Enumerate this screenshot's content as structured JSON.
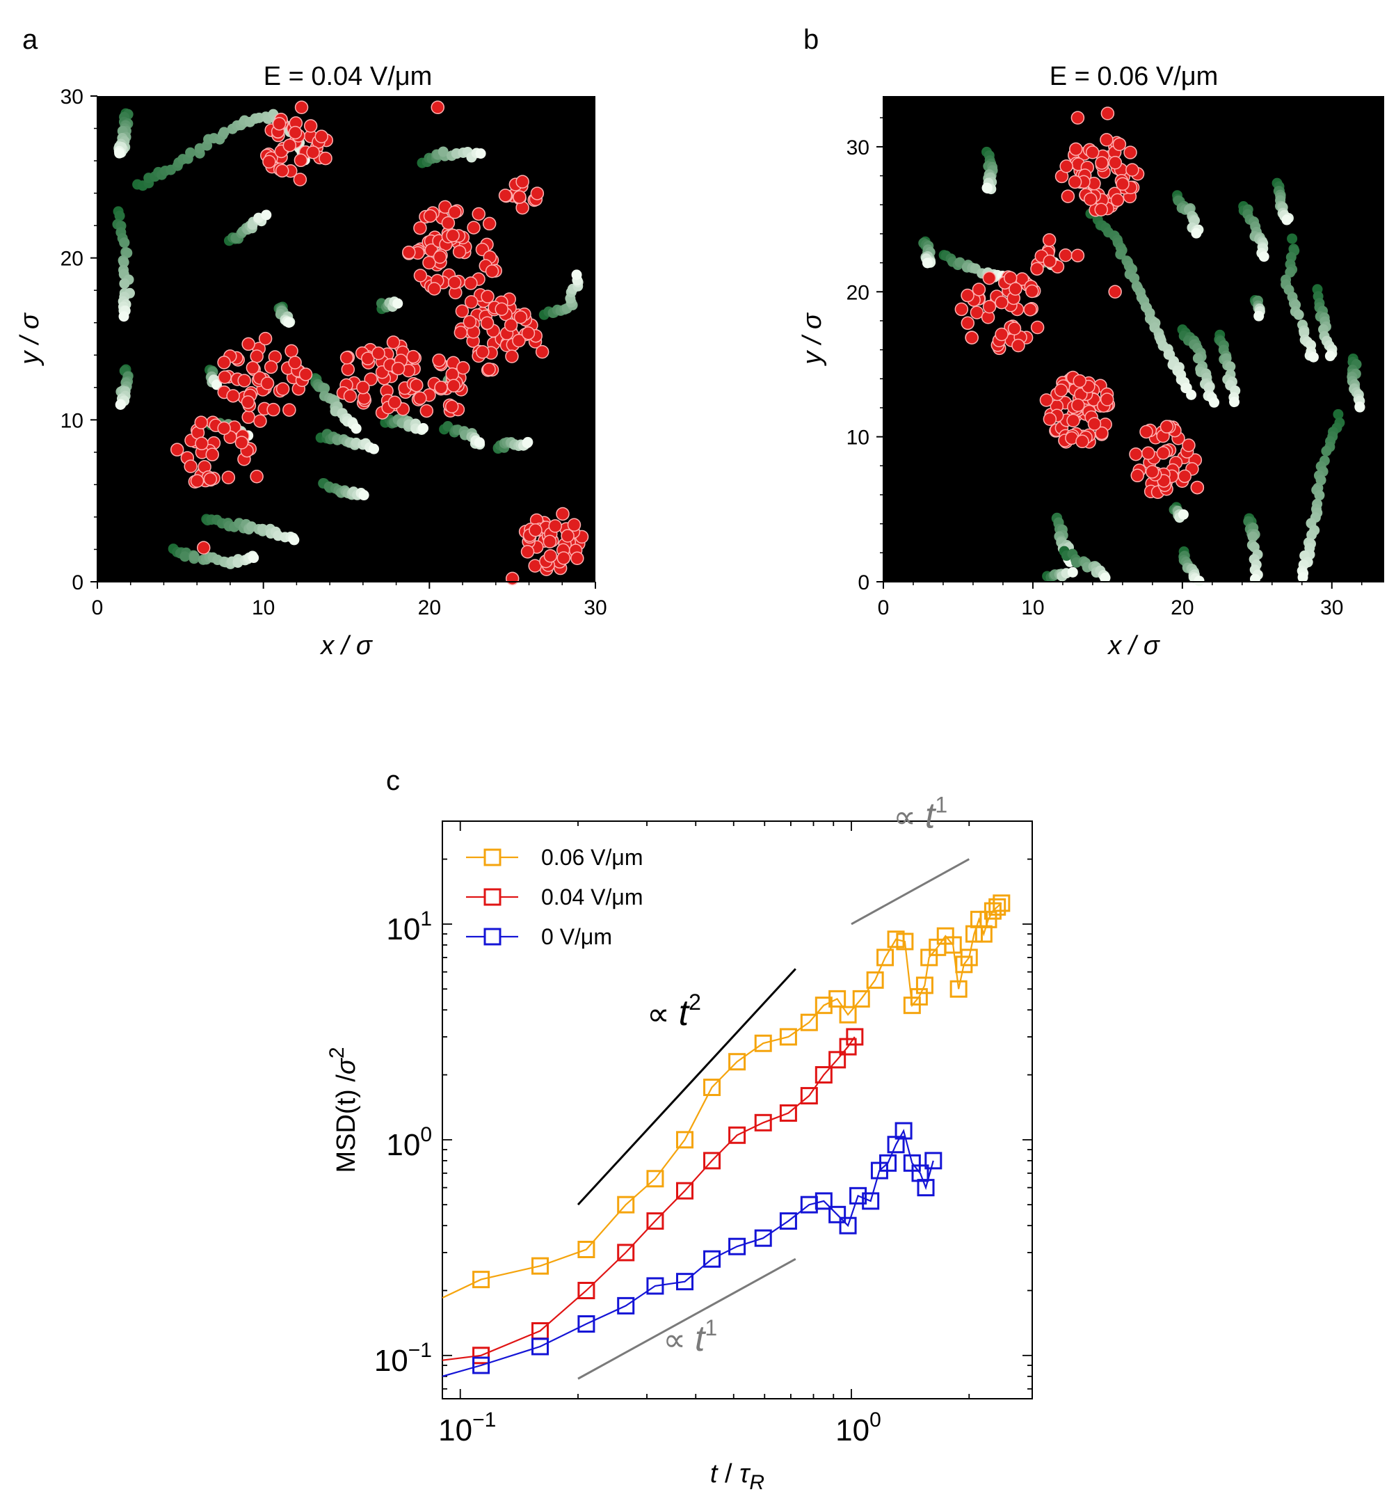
{
  "panels": {
    "a": {
      "letter": "a",
      "title": "E = 0.04 V/μm"
    },
    "b": {
      "letter": "b",
      "title": "E = 0.06 V/μm"
    },
    "c": {
      "letter": "c"
    }
  },
  "colors": {
    "background": "#000000",
    "passive_particle": "#e01e1e",
    "passive_edge": "#ffb0b0",
    "trajectory_dark": "#1d6b35",
    "trajectory_light": "#f2fbf2",
    "series_006": "#f5a40d",
    "series_004": "#e01414",
    "series_0": "#1414d6",
    "guide_black": "#000000",
    "guide_gray": "#7a7a7a"
  },
  "chart_data": [
    {
      "type": "scatter",
      "panel": "a",
      "title": "E = 0.04 V/μm",
      "xlabel": "x / σ",
      "ylabel": "y / σ",
      "xlim": [
        0,
        30
      ],
      "ylim": [
        0,
        30
      ],
      "xticks": [
        "0",
        "10",
        "20",
        "30"
      ],
      "yticks": [
        "0",
        "10",
        "20",
        "30"
      ],
      "clusters": [
        {
          "cx": 12.0,
          "cy": 26.8,
          "r": 2.0,
          "n": 35
        },
        {
          "cx": 21.5,
          "cy": 20.5,
          "r": 2.8,
          "n": 60
        },
        {
          "cx": 24.0,
          "cy": 15.5,
          "r": 2.5,
          "n": 55
        },
        {
          "cx": 17.0,
          "cy": 12.5,
          "r": 2.5,
          "n": 45
        },
        {
          "cx": 10.0,
          "cy": 12.5,
          "r": 2.6,
          "n": 45
        },
        {
          "cx": 7.0,
          "cy": 8.0,
          "r": 2.2,
          "n": 35
        },
        {
          "cx": 27.5,
          "cy": 2.5,
          "r": 1.9,
          "n": 45
        },
        {
          "cx": 20.8,
          "cy": 12.0,
          "r": 1.8,
          "n": 25
        },
        {
          "cx": 25.5,
          "cy": 24.0,
          "r": 1.0,
          "n": 12
        }
      ],
      "trajectories": [
        [
          [
            1.8,
            29.0
          ],
          [
            1.7,
            28.0
          ],
          [
            1.5,
            27.0
          ],
          [
            1.3,
            26.5
          ]
        ],
        [
          [
            2.5,
            24.5
          ],
          [
            4.5,
            25.5
          ],
          [
            6.5,
            27.0
          ],
          [
            8.5,
            28.3
          ],
          [
            10.5,
            28.8
          ],
          [
            12.0,
            27.5
          ],
          [
            12.5,
            26.0
          ]
        ],
        [
          [
            1.2,
            22.8
          ],
          [
            1.6,
            20.5
          ],
          [
            1.8,
            18.0
          ],
          [
            1.6,
            16.5
          ]
        ],
        [
          [
            8.0,
            21.0
          ],
          [
            9.0,
            21.8
          ],
          [
            10.0,
            22.5
          ]
        ],
        [
          [
            11.0,
            17.0
          ],
          [
            11.2,
            16.5
          ],
          [
            11.5,
            16.0
          ]
        ],
        [
          [
            17.0,
            17.0
          ],
          [
            18.0,
            17.2
          ]
        ],
        [
          [
            1.8,
            13.0
          ],
          [
            1.6,
            12.0
          ],
          [
            1.5,
            11.0
          ]
        ],
        [
          [
            6.8,
            13.0
          ],
          [
            7.2,
            12.2
          ]
        ],
        [
          [
            13.0,
            12.5
          ],
          [
            13.5,
            12.0
          ],
          [
            14.5,
            10.5
          ],
          [
            15.5,
            9.5
          ]
        ],
        [
          [
            7.0,
            9.8
          ],
          [
            8.0,
            9.5
          ],
          [
            9.0,
            9.2
          ]
        ],
        [
          [
            13.5,
            9.0
          ],
          [
            15.0,
            8.8
          ],
          [
            16.5,
            8.3
          ]
        ],
        [
          [
            13.5,
            6.0
          ],
          [
            15.0,
            5.5
          ],
          [
            16.0,
            5.3
          ]
        ],
        [
          [
            17.5,
            10.0
          ],
          [
            18.5,
            9.8
          ],
          [
            19.5,
            9.5
          ]
        ],
        [
          [
            21.0,
            9.5
          ],
          [
            22.5,
            9.0
          ],
          [
            23.0,
            8.5
          ]
        ],
        [
          [
            21.0,
            12.5
          ],
          [
            21.5,
            12.0
          ]
        ],
        [
          [
            24.0,
            8.3
          ],
          [
            25.0,
            8.5
          ],
          [
            26.0,
            8.5
          ]
        ],
        [
          [
            19.5,
            26.0
          ],
          [
            21.0,
            26.5
          ],
          [
            23.0,
            26.3
          ]
        ],
        [
          [
            6.5,
            3.8
          ],
          [
            8.5,
            3.5
          ],
          [
            10.0,
            3.2
          ],
          [
            12.0,
            2.5
          ]
        ],
        [
          [
            4.5,
            2.0
          ],
          [
            6.0,
            1.5
          ],
          [
            8.0,
            1.2
          ],
          [
            9.5,
            1.5
          ]
        ],
        [
          [
            27.0,
            16.5
          ],
          [
            28.5,
            17.0
          ],
          [
            29.0,
            19.0
          ]
        ]
      ],
      "isolated": [
        [
          12.3,
          29.3
        ],
        [
          20.5,
          29.3
        ],
        [
          13.5,
          27.5
        ],
        [
          26.8,
          14.2
        ],
        [
          16.0,
          12.0
        ],
        [
          20.7,
          12.0
        ],
        [
          6.4,
          2.1
        ],
        [
          25.0,
          0.2
        ],
        [
          9.6,
          6.5
        ]
      ]
    },
    {
      "type": "scatter",
      "panel": "b",
      "title": "E = 0.06 V/μm",
      "xlabel": "x / σ",
      "ylabel": "y / σ",
      "xlim": [
        0,
        33.5
      ],
      "ylim": [
        0,
        33.5
      ],
      "xticks": [
        "0",
        "10",
        "20",
        "30"
      ],
      "yticks": [
        "0",
        "10",
        "20",
        "30"
      ],
      "clusters": [
        {
          "cx": 14.5,
          "cy": 28.0,
          "r": 2.6,
          "n": 60
        },
        {
          "cx": 8.0,
          "cy": 18.5,
          "r": 2.8,
          "n": 45
        },
        {
          "cx": 13.0,
          "cy": 11.8,
          "r": 2.4,
          "n": 70
        },
        {
          "cx": 18.5,
          "cy": 8.5,
          "r": 2.4,
          "n": 40
        },
        {
          "cx": 11.0,
          "cy": 22.5,
          "r": 1.2,
          "n": 10
        }
      ],
      "trajectories": [
        [
          [
            7.0,
            29.5
          ],
          [
            7.2,
            28.0
          ],
          [
            7.0,
            27.0
          ]
        ],
        [
          [
            2.8,
            23.5
          ],
          [
            3.0,
            22.5
          ],
          [
            3.0,
            22.0
          ]
        ],
        [
          [
            4.0,
            22.5
          ],
          [
            6.0,
            21.5
          ],
          [
            8.0,
            21.0
          ]
        ],
        [
          [
            10.5,
            22.2
          ],
          [
            11.5,
            22.0
          ]
        ],
        [
          [
            14.0,
            25.5
          ],
          [
            15.5,
            23.5
          ],
          [
            16.5,
            21.5
          ],
          [
            17.5,
            19.0
          ],
          [
            18.5,
            17.0
          ],
          [
            19.5,
            15.0
          ],
          [
            20.5,
            13.0
          ]
        ],
        [
          [
            19.5,
            26.5
          ],
          [
            20.5,
            25.5
          ],
          [
            21.0,
            24.0
          ]
        ],
        [
          [
            24.0,
            26.0
          ],
          [
            25.0,
            24.0
          ],
          [
            25.5,
            22.5
          ]
        ],
        [
          [
            26.5,
            27.5
          ],
          [
            26.7,
            26.0
          ],
          [
            27.0,
            25.0
          ]
        ],
        [
          [
            27.5,
            23.5
          ],
          [
            27.0,
            20.5
          ],
          [
            28.0,
            17.5
          ],
          [
            28.8,
            15.5
          ]
        ],
        [
          [
            20.0,
            17.5
          ],
          [
            21.0,
            16.0
          ],
          [
            21.5,
            14.0
          ],
          [
            22.0,
            12.5
          ]
        ],
        [
          [
            22.5,
            17.0
          ],
          [
            23.0,
            15.0
          ],
          [
            23.5,
            12.5
          ]
        ],
        [
          [
            29.0,
            20.0
          ],
          [
            29.5,
            17.5
          ],
          [
            30.0,
            15.5
          ]
        ],
        [
          [
            31.5,
            15.5
          ],
          [
            31.5,
            13.5
          ],
          [
            31.8,
            12.0
          ]
        ],
        [
          [
            30.5,
            11.5
          ],
          [
            29.5,
            8.5
          ],
          [
            29.0,
            5.5
          ],
          [
            28.5,
            2.5
          ],
          [
            28.0,
            0.2
          ]
        ],
        [
          [
            25.0,
            19.5
          ],
          [
            25.2,
            18.5
          ]
        ],
        [
          [
            24.5,
            4.5
          ],
          [
            24.8,
            3.0
          ],
          [
            25.0,
            0.2
          ]
        ],
        [
          [
            11.5,
            4.5
          ],
          [
            12.0,
            3.0
          ],
          [
            12.5,
            1.5
          ]
        ],
        [
          [
            12.0,
            2.0
          ],
          [
            14.0,
            1.0
          ],
          [
            15.0,
            0.3
          ]
        ],
        [
          [
            19.5,
            5.0
          ],
          [
            20.0,
            4.5
          ]
        ],
        [
          [
            20.0,
            2.0
          ],
          [
            20.5,
            1.0
          ],
          [
            21.0,
            0.2
          ]
        ],
        [
          [
            11.0,
            0.3
          ],
          [
            12.5,
            0.5
          ]
        ]
      ],
      "isolated": [
        [
          13.0,
          32.0
        ],
        [
          15.0,
          32.3
        ],
        [
          15.5,
          20.0
        ],
        [
          13.0,
          22.5
        ],
        [
          21.0,
          6.5
        ],
        [
          21.0,
          6.5
        ]
      ]
    },
    {
      "type": "line",
      "panel": "c",
      "xlabel": "t / τR",
      "ylabel": "MSD(t) /σ²",
      "xscale": "log",
      "yscale": "log",
      "xlim": [
        0.09,
        2.9
      ],
      "ylim": [
        0.063,
        30
      ],
      "xticks": [
        0.1,
        1
      ],
      "yticks": [
        0.1,
        1,
        10
      ],
      "legend_position": "top-left",
      "series": [
        {
          "name": "0.06 V/μm",
          "color": "#f5a40d",
          "x": [
            0.09,
            0.113,
            0.16,
            0.21,
            0.265,
            0.315,
            0.375,
            0.44,
            0.51,
            0.595,
            0.69,
            0.78,
            0.85,
            0.92,
            0.98,
            1.06,
            1.15,
            1.22,
            1.3,
            1.37,
            1.43,
            1.49,
            1.54,
            1.58,
            1.66,
            1.74,
            1.82,
            1.88,
            1.94,
            2.0,
            2.06,
            2.12,
            2.18,
            2.24,
            2.3,
            2.36,
            2.42
          ],
          "y": [
            0.185,
            0.225,
            0.26,
            0.31,
            0.5,
            0.66,
            1.0,
            1.75,
            2.3,
            2.8,
            3.0,
            3.5,
            4.2,
            4.5,
            3.8,
            4.5,
            5.5,
            7.0,
            8.5,
            8.3,
            4.2,
            4.6,
            5.2,
            7.0,
            7.8,
            8.8,
            8.0,
            5.0,
            6.5,
            7.0,
            9.0,
            10.5,
            9.0,
            10.5,
            11.5,
            12.0,
            12.5
          ]
        },
        {
          "name": "0.04 V/μm",
          "color": "#e01414",
          "x": [
            0.09,
            0.113,
            0.16,
            0.21,
            0.265,
            0.315,
            0.375,
            0.44,
            0.51,
            0.595,
            0.69,
            0.78,
            0.85,
            0.92,
            0.98,
            1.02
          ],
          "y": [
            0.095,
            0.1,
            0.13,
            0.2,
            0.3,
            0.42,
            0.58,
            0.8,
            1.05,
            1.2,
            1.33,
            1.6,
            2.0,
            2.35,
            2.7,
            3.0
          ]
        },
        {
          "name": "0 V/μm",
          "color": "#1414d6",
          "x": [
            0.09,
            0.113,
            0.16,
            0.21,
            0.265,
            0.315,
            0.375,
            0.44,
            0.51,
            0.595,
            0.69,
            0.78,
            0.85,
            0.92,
            0.98,
            1.04,
            1.12,
            1.18,
            1.24,
            1.3,
            1.36,
            1.43,
            1.5,
            1.55,
            1.62
          ],
          "y": [
            0.08,
            0.09,
            0.11,
            0.14,
            0.17,
            0.21,
            0.22,
            0.28,
            0.32,
            0.35,
            0.42,
            0.5,
            0.52,
            0.45,
            0.4,
            0.55,
            0.52,
            0.72,
            0.78,
            0.95,
            1.1,
            0.78,
            0.7,
            0.6,
            0.8
          ]
        }
      ],
      "guides": [
        {
          "label": "∝ t",
          "exponent": "2",
          "color": "#000000",
          "x": [
            0.2,
            0.72
          ],
          "y": [
            0.5,
            6.2
          ]
        },
        {
          "label": "∝ t",
          "exponent": "1",
          "color": "#7a7a7a",
          "x": [
            1.0,
            2.0
          ],
          "y": [
            10.0,
            20.0
          ]
        },
        {
          "label": "∝ t",
          "exponent": "1",
          "color": "#7a7a7a",
          "x": [
            0.2,
            0.72
          ],
          "y": [
            0.078,
            0.28
          ]
        }
      ]
    }
  ]
}
